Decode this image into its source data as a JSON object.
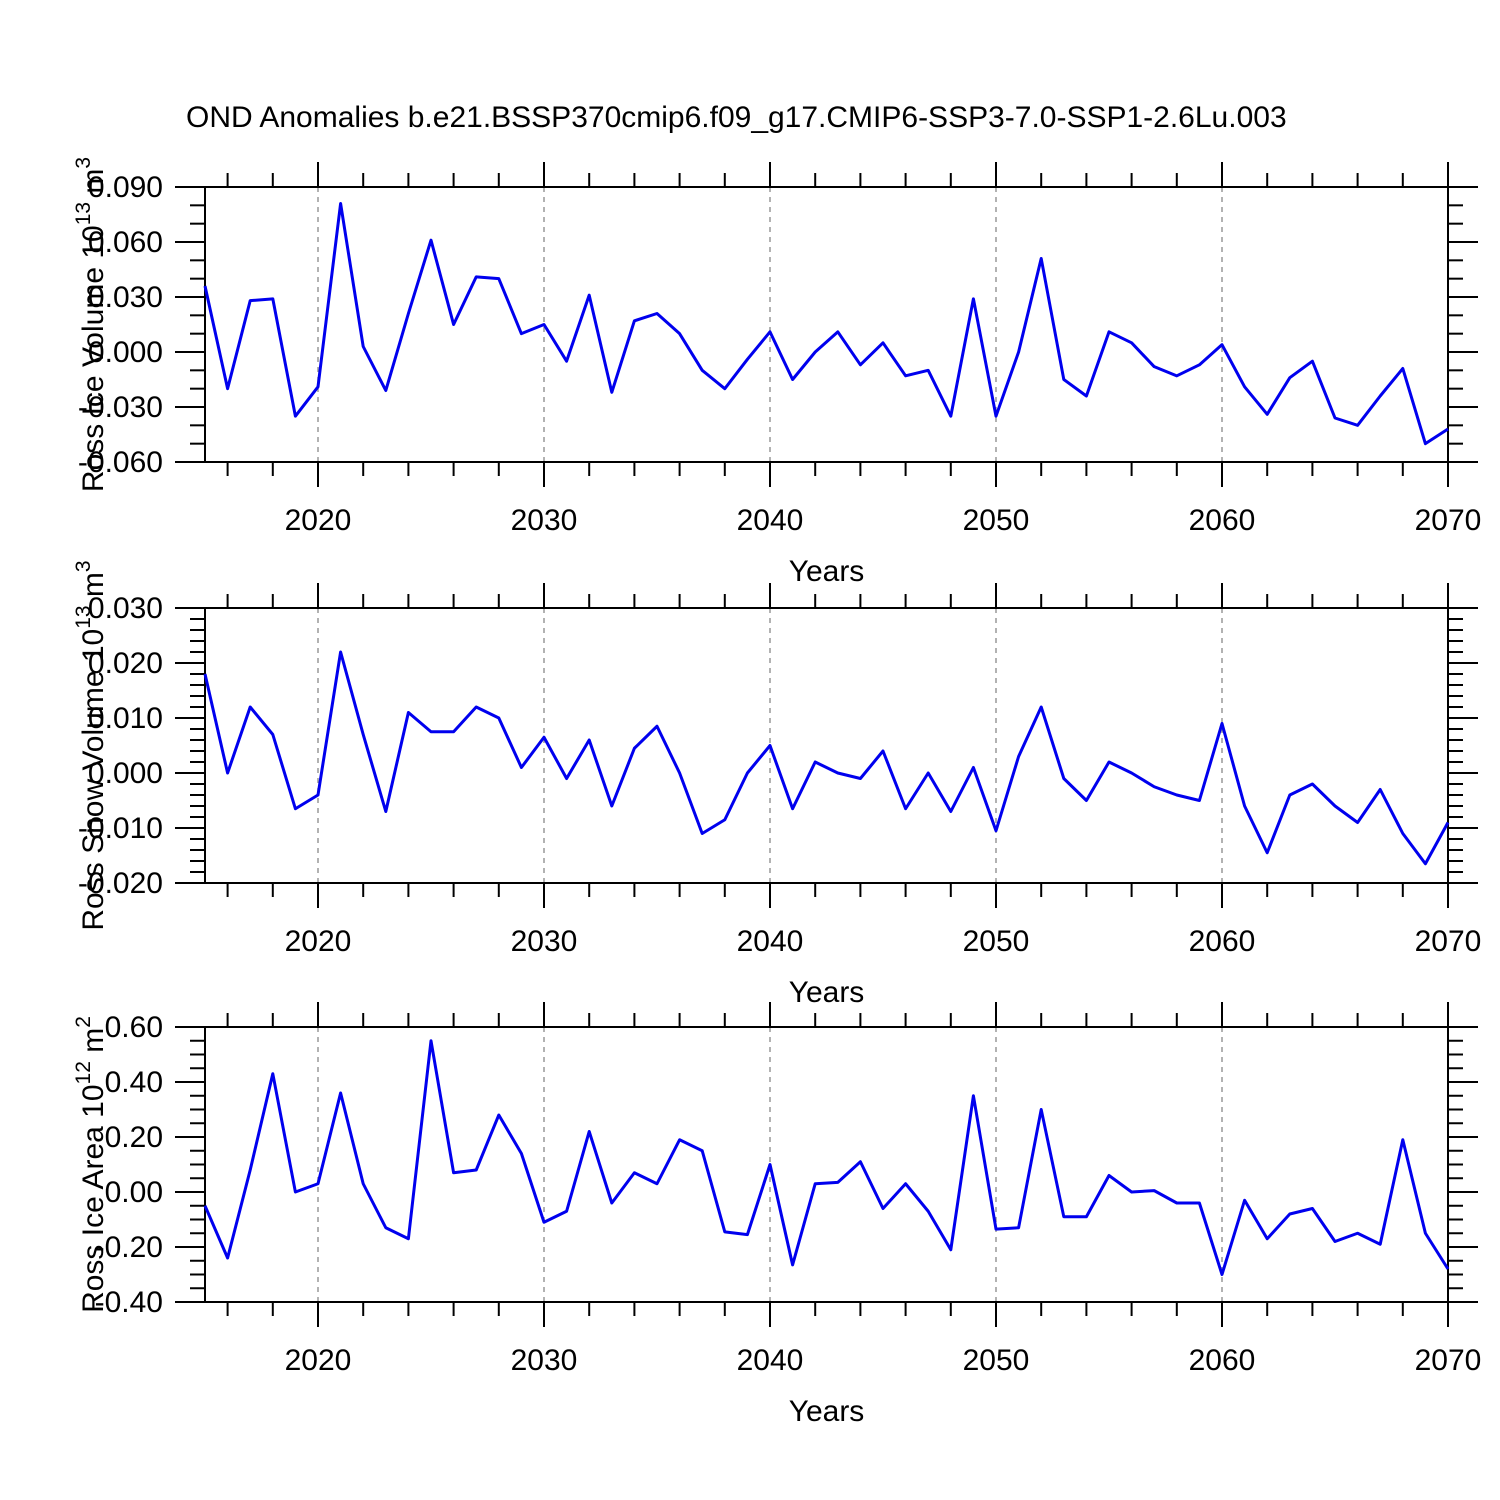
{
  "title": "OND Anomalies b.e21.BSSP370cmip6.f09_g17.CMIP6-SSP3-7.0-SSP1-2.6Lu.003",
  "colors": {
    "line": "#0000ee",
    "grid": "#999999",
    "axis": "#000000",
    "background": "#ffffff",
    "text": "#000000"
  },
  "x_axis": {
    "label": "Years",
    "start": 2015,
    "end": 2070,
    "step": 1,
    "major_ticks": [
      2020,
      2030,
      2040,
      2050,
      2060,
      2070
    ],
    "major_tick_labels": [
      "2020",
      "2030",
      "2040",
      "2050",
      "2060",
      "2070"
    ],
    "minor_tick_step": 2,
    "gridline_years": [
      2020,
      2030,
      2040,
      2050,
      2060
    ],
    "gridline_style": "dashed"
  },
  "chart_data": [
    {
      "type": "line",
      "name": "ross-ice-volume",
      "ylabel_text": "Ross Ice Volume 10^13 m^3",
      "ylabel_parts": [
        {
          "t": "Ross Ice Volume 10"
        },
        {
          "t": "13",
          "sup": true
        },
        {
          "t": " m"
        },
        {
          "t": "3",
          "sup": true
        }
      ],
      "ylim": [
        -0.06,
        0.09
      ],
      "ymajor_step": 0.03,
      "yminor_step": 0.01,
      "ytick_values": [
        0.09,
        0.06,
        0.03,
        0.0,
        -0.03,
        -0.06
      ],
      "ytick_labels": [
        "0.090",
        "0.060",
        "0.030",
        "0.000",
        "-0.030",
        "-0.060"
      ],
      "values": [
        0.036,
        -0.02,
        0.028,
        0.029,
        -0.035,
        -0.019,
        0.081,
        0.003,
        -0.021,
        0.021,
        0.061,
        0.015,
        0.041,
        0.04,
        0.01,
        0.015,
        -0.005,
        0.031,
        -0.022,
        0.017,
        0.021,
        0.01,
        -0.01,
        -0.02,
        -0.004,
        0.011,
        -0.015,
        0.0,
        0.011,
        -0.007,
        0.005,
        -0.013,
        -0.01,
        -0.035,
        0.029,
        -0.035,
        0.0,
        0.051,
        -0.015,
        -0.024,
        0.011,
        0.005,
        -0.008,
        -0.013,
        -0.007,
        0.004,
        -0.019,
        -0.034,
        -0.014,
        -0.005,
        -0.036,
        -0.04,
        -0.024,
        -0.009,
        -0.05,
        -0.042
      ]
    },
    {
      "type": "line",
      "name": "ross-snow-volume",
      "ylabel_text": "Ross Snow Volume 10^13 m^3",
      "ylabel_parts": [
        {
          "t": "Ross Snow Volume 10"
        },
        {
          "t": "13",
          "sup": true
        },
        {
          "t": " m"
        },
        {
          "t": "3",
          "sup": true
        }
      ],
      "ylim": [
        -0.02,
        0.03
      ],
      "ymajor_step": 0.01,
      "yminor_step": 0.002,
      "ytick_values": [
        0.03,
        0.02,
        0.01,
        0.0,
        -0.01,
        -0.02
      ],
      "ytick_labels": [
        "0.030",
        "0.020",
        "0.010",
        "0.000",
        "-0.010",
        "-0.020"
      ],
      "values": [
        0.018,
        0.0,
        0.012,
        0.007,
        -0.0065,
        -0.004,
        0.022,
        0.007,
        -0.007,
        0.011,
        0.0075,
        0.0075,
        0.012,
        0.01,
        0.001,
        0.0065,
        -0.001,
        0.006,
        -0.006,
        0.0045,
        0.0085,
        0.0,
        -0.011,
        -0.0085,
        0.0,
        0.005,
        -0.0065,
        0.002,
        0.0,
        -0.001,
        0.004,
        -0.0065,
        0.0,
        -0.007,
        0.001,
        -0.0105,
        0.003,
        0.012,
        -0.001,
        -0.005,
        0.002,
        0.0,
        -0.0025,
        -0.004,
        -0.005,
        0.009,
        -0.006,
        -0.0145,
        -0.004,
        -0.002,
        -0.006,
        -0.009,
        -0.003,
        -0.011,
        -0.0165,
        -0.009
      ]
    },
    {
      "type": "line",
      "name": "ross-ice-area",
      "ylabel_text": "Ross Ice Area 10^12 m^2",
      "ylabel_parts": [
        {
          "t": "Ross Ice Area 10"
        },
        {
          "t": "12",
          "sup": true
        },
        {
          "t": " m"
        },
        {
          "t": "2",
          "sup": true
        }
      ],
      "ylim": [
        -0.4,
        0.6
      ],
      "ymajor_step": 0.2,
      "yminor_step": 0.05,
      "ytick_values": [
        0.6,
        0.4,
        0.2,
        0.0,
        -0.2,
        -0.4
      ],
      "ytick_labels": [
        "0.60",
        "0.40",
        "0.20",
        "0.00",
        "-0.20",
        "-0.40"
      ],
      "values": [
        -0.05,
        -0.24,
        0.08,
        0.43,
        0.0,
        0.03,
        0.36,
        0.03,
        -0.13,
        -0.17,
        0.55,
        0.07,
        0.08,
        0.28,
        0.14,
        -0.11,
        -0.07,
        0.22,
        -0.04,
        0.07,
        0.03,
        0.19,
        0.15,
        -0.145,
        -0.155,
        0.1,
        -0.265,
        0.03,
        0.035,
        0.11,
        -0.06,
        0.03,
        -0.07,
        -0.21,
        0.35,
        -0.135,
        -0.13,
        0.3,
        -0.09,
        -0.09,
        0.06,
        0.0,
        0.005,
        -0.04,
        -0.04,
        -0.3,
        -0.03,
        -0.17,
        -0.08,
        -0.06,
        -0.18,
        -0.15,
        -0.19,
        0.19,
        -0.15,
        -0.28
      ]
    }
  ]
}
